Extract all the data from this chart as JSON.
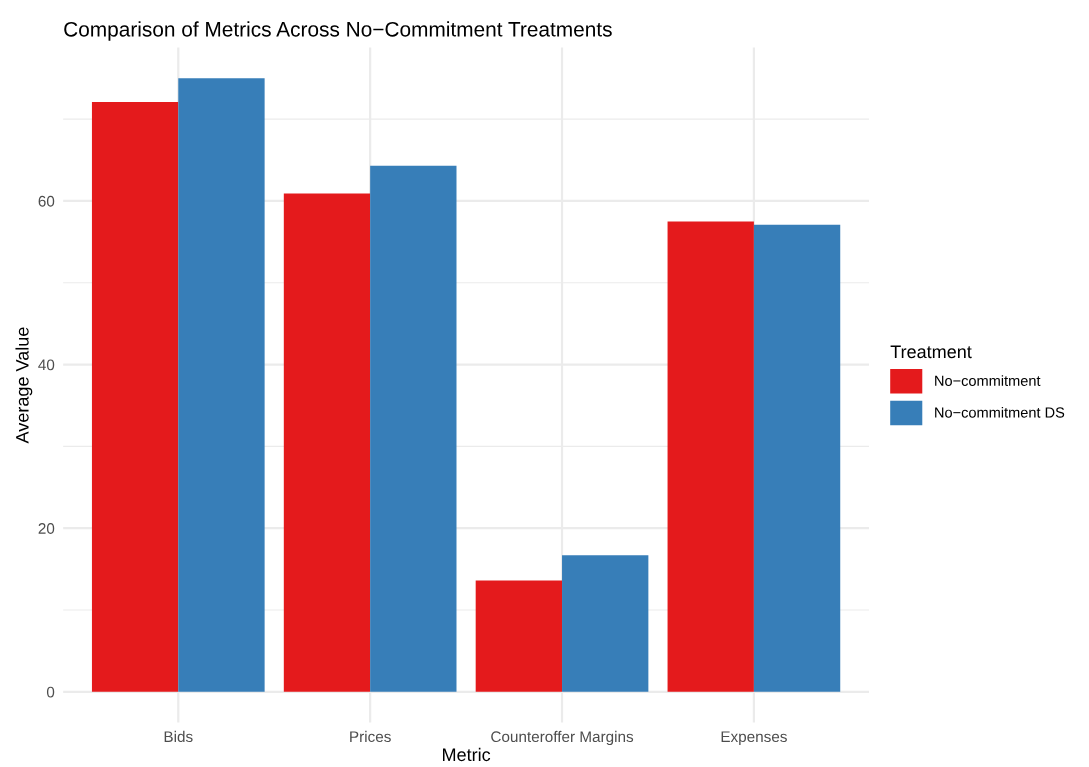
{
  "chart_data": {
    "type": "bar",
    "title": "Comparison of Metrics Across No−Commitment Treatments",
    "xlabel": "Metric",
    "ylabel": "Average Value",
    "legend_title": "Treatment",
    "categories": [
      "Bids",
      "Prices",
      "Counteroffer Margins",
      "Expenses"
    ],
    "series": [
      {
        "name": "No−commitment",
        "color": "#e41a1c",
        "values": [
          72.1,
          60.9,
          13.6,
          57.5
        ]
      },
      {
        "name": "No−commitment DS",
        "color": "#377eb8",
        "values": [
          75.0,
          64.3,
          16.7,
          57.1
        ]
      }
    ],
    "ylim": [
      -3.75,
      78.75
    ],
    "yticks": [
      0,
      {
        "value": 10,
        "label": null
      },
      20,
      {
        "value": 30,
        "label": null
      },
      40,
      {
        "value": 50,
        "label": null
      },
      60,
      {
        "value": 70,
        "label": null
      }
    ],
    "grid": true,
    "legend": "right"
  }
}
